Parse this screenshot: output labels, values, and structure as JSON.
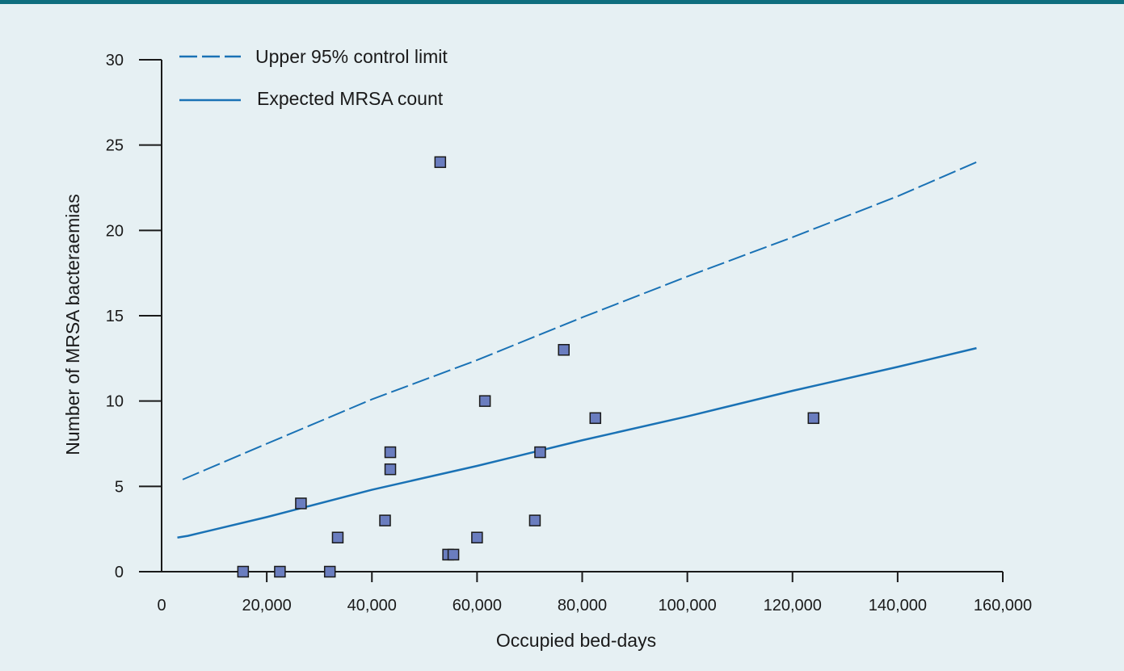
{
  "colors": {
    "background": "#e6f0f3",
    "top_bar": "#0e6e7e",
    "line": "#1a72b5",
    "marker_fill": "#6a7dbf",
    "marker_stroke": "#1a1a1a",
    "axis": "#1a1a1a"
  },
  "chart_data": {
    "type": "scatter",
    "title": "",
    "xlabel": "Occupied bed-days",
    "ylabel": "Number of MRSA bacteraemias",
    "xlim": [
      0,
      160000
    ],
    "ylim": [
      0,
      30
    ],
    "x_ticks": [
      0,
      20000,
      40000,
      60000,
      80000,
      100000,
      120000,
      140000,
      160000
    ],
    "x_tick_labels": [
      "0",
      "20,000",
      "40,000",
      "60,000",
      "80,000",
      "100,000",
      "120,000",
      "140,000",
      "160,000"
    ],
    "y_ticks": [
      0,
      5,
      10,
      15,
      20,
      25,
      30
    ],
    "y_tick_labels": [
      "0",
      "5",
      "10",
      "15",
      "20",
      "25",
      "30"
    ],
    "grid": false,
    "legend_position": "top-left",
    "series": [
      {
        "name": "Upper 95% control limit",
        "kind": "line",
        "style": "dashed",
        "points": [
          [
            4000,
            5.4
          ],
          [
            20000,
            7.5
          ],
          [
            40000,
            10.1
          ],
          [
            60000,
            12.4
          ],
          [
            80000,
            14.9
          ],
          [
            100000,
            17.3
          ],
          [
            120000,
            19.6
          ],
          [
            140000,
            22.0
          ],
          [
            155000,
            24.0
          ]
        ]
      },
      {
        "name": "Expected MRSA count",
        "kind": "line",
        "style": "solid",
        "points": [
          [
            3000,
            2.0
          ],
          [
            5000,
            2.1
          ],
          [
            20000,
            3.2
          ],
          [
            40000,
            4.8
          ],
          [
            60000,
            6.2
          ],
          [
            80000,
            7.7
          ],
          [
            100000,
            9.1
          ],
          [
            120000,
            10.6
          ],
          [
            140000,
            12.0
          ],
          [
            155000,
            13.1
          ]
        ]
      },
      {
        "name": "",
        "kind": "scatter",
        "points": [
          [
            15500,
            0
          ],
          [
            22500,
            0
          ],
          [
            32000,
            0
          ],
          [
            33500,
            2
          ],
          [
            26500,
            4
          ],
          [
            42500,
            3
          ],
          [
            43500,
            7
          ],
          [
            43500,
            6
          ],
          [
            53000,
            24
          ],
          [
            54500,
            1
          ],
          [
            55500,
            1
          ],
          [
            60000,
            2
          ],
          [
            61500,
            10
          ],
          [
            71000,
            3
          ],
          [
            72000,
            7
          ],
          [
            76500,
            13
          ],
          [
            82500,
            9
          ],
          [
            124000,
            9
          ]
        ]
      }
    ]
  }
}
